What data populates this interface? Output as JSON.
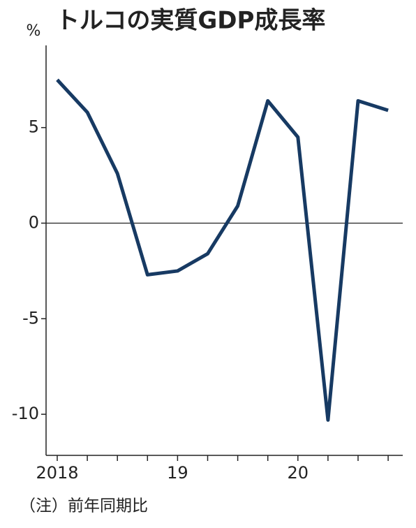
{
  "chart_data": {
    "type": "line",
    "title": "トルコの実質GDP成長率",
    "y_unit": "%",
    "note": "（注）前年同期比",
    "categories": [
      "2018",
      null,
      null,
      null,
      "19",
      null,
      null,
      null,
      "20",
      null,
      null,
      null
    ],
    "values": [
      7.5,
      5.8,
      2.6,
      -2.7,
      -2.5,
      -1.6,
      0.9,
      6.4,
      4.5,
      -10.3,
      6.4,
      5.9
    ],
    "color": "#173a63",
    "ylim": [
      -12.15,
      9.3
    ],
    "yticks": [
      5,
      0,
      -5,
      -10
    ],
    "reference_line": 0
  }
}
